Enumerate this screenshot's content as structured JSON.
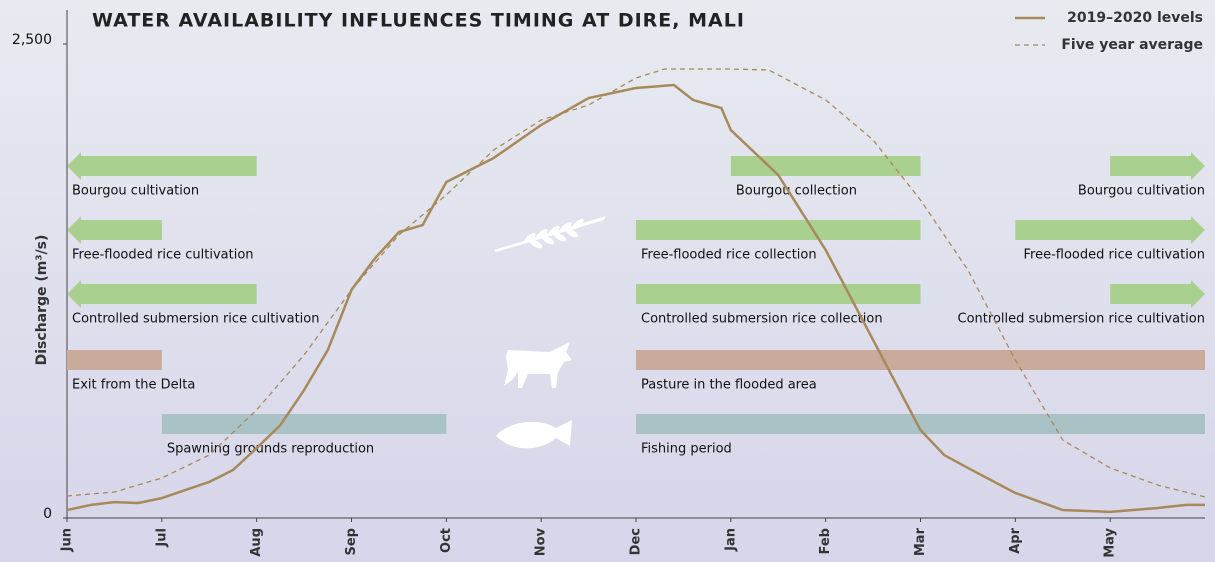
{
  "chart_data": {
    "type": "line",
    "title": "WATER AVAILABILITY INFLUENCES TIMING AT DIRE, MALI",
    "ylabel": "Discharge (m³/s)",
    "xlim": [
      0,
      12
    ],
    "xticks": [
      {
        "value": 0,
        "label": "Jun"
      },
      {
        "value": 1,
        "label": "Jul"
      },
      {
        "value": 2,
        "label": "Aug"
      },
      {
        "value": 3,
        "label": "Sep"
      },
      {
        "value": 4,
        "label": "Oct"
      },
      {
        "value": 5,
        "label": "Nov"
      },
      {
        "value": 6,
        "label": "Dec"
      },
      {
        "value": 7,
        "label": "Jan"
      },
      {
        "value": 8,
        "label": "Feb"
      },
      {
        "value": 9,
        "label": "Mar"
      },
      {
        "value": 10,
        "label": "Apr"
      },
      {
        "value": 11,
        "label": "May"
      }
    ],
    "ylim": [
      0,
      2500
    ],
    "yticks": [
      0,
      {
        "value": 2500,
        "label": "2,500"
      }
    ],
    "legend": "top-right",
    "series": [
      {
        "name": "2019–2020 levels",
        "color": "#a8895a",
        "dash": false,
        "x": [
          0,
          0.25,
          0.5,
          0.75,
          1,
          1.25,
          1.5,
          1.75,
          2,
          2.25,
          2.5,
          2.75,
          3,
          3.25,
          3.5,
          3.75,
          4,
          4.5,
          5,
          5.5,
          6,
          6.4,
          6.6,
          6.9,
          7,
          7.5,
          8,
          8.5,
          9,
          9.25,
          9.5,
          10,
          10.5,
          11,
          11.5,
          11.8,
          12
        ],
        "values": [
          42,
          69,
          84,
          79,
          105,
          148,
          190,
          253,
          369,
          490,
          675,
          886,
          1203,
          1371,
          1508,
          1545,
          1772,
          1899,
          2073,
          2215,
          2268,
          2284,
          2205,
          2162,
          2046,
          1809,
          1414,
          939,
          464,
          332,
          264,
          132,
          42,
          32,
          53,
          69,
          69
        ]
      },
      {
        "name": "Five year average",
        "color": "#a8895a",
        "dash": true,
        "x": [
          0,
          0.5,
          1,
          1.5,
          2,
          2.5,
          3,
          3.5,
          4,
          4.5,
          5,
          5.5,
          6,
          6.3,
          7,
          7.4,
          8,
          8.5,
          9,
          9.5,
          10,
          10.5,
          11,
          11.5,
          12
        ],
        "values": [
          116,
          137,
          211,
          332,
          570,
          860,
          1203,
          1493,
          1704,
          1941,
          2099,
          2178,
          2321,
          2368,
          2368,
          2363,
          2205,
          1994,
          1677,
          1308,
          833,
          411,
          264,
          174,
          111
        ]
      }
    ],
    "activities": [
      [
        {
          "label": "Bourgou cultivation",
          "start": 0,
          "end": 2,
          "color": "#a9d08e",
          "arrow": "left"
        },
        {
          "label": "Bourgou collection",
          "start": 7,
          "end": 9,
          "color": "#a9d08e"
        },
        {
          "label": "Bourgou cultivation",
          "start": 11,
          "end": 12,
          "color": "#a9d08e",
          "arrow": "right"
        }
      ],
      [
        {
          "label": "Free-flooded rice cultivation",
          "start": 0,
          "end": 1,
          "color": "#a9d08e",
          "arrow": "left"
        },
        {
          "label": "Free-flooded rice collection",
          "start": 6,
          "end": 9,
          "color": "#a9d08e"
        },
        {
          "label": "Free-flooded rice cultivation",
          "start": 10,
          "end": 12,
          "color": "#a9d08e",
          "arrow": "right"
        }
      ],
      [
        {
          "label": "Controlled submersion rice cultivation",
          "start": 0,
          "end": 2,
          "color": "#a9d08e",
          "arrow": "left"
        },
        {
          "label": "Controlled submersion rice collection",
          "start": 6,
          "end": 9,
          "color": "#a9d08e"
        },
        {
          "label": "Controlled submersion rice cultivation",
          "start": 11,
          "end": 12,
          "color": "#a9d08e",
          "arrow": "right"
        }
      ],
      [
        {
          "label": "Exit from the Delta",
          "start": 0,
          "end": 1,
          "color": "#c9ab9c"
        },
        {
          "label": "Pasture in the flooded area",
          "start": 6,
          "end": 12,
          "color": "#c9ab9c"
        }
      ],
      [
        {
          "label": "Spawning grounds reproduction",
          "start": 1,
          "end": 4,
          "color": "#a8c2c6"
        },
        {
          "label": "Fishing period",
          "start": 6,
          "end": 12,
          "color": "#a8c2c6"
        }
      ]
    ]
  }
}
